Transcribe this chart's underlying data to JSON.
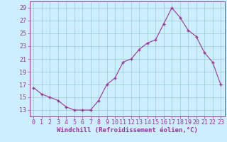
{
  "x": [
    0,
    1,
    2,
    3,
    4,
    5,
    6,
    7,
    8,
    9,
    10,
    11,
    12,
    13,
    14,
    15,
    16,
    17,
    18,
    19,
    20,
    21,
    22,
    23
  ],
  "y": [
    16.5,
    15.5,
    15.0,
    14.5,
    13.5,
    13.0,
    13.0,
    13.0,
    14.5,
    17.0,
    18.0,
    20.5,
    21.0,
    22.5,
    23.5,
    24.0,
    26.5,
    29.0,
    27.5,
    25.5,
    24.5,
    22.0,
    20.5,
    17.0
  ],
  "line_color": "#993399",
  "marker": "+",
  "bg_color": "#cceeff",
  "grid_color": "#99cccc",
  "xlabel": "Windchill (Refroidissement éolien,°C)",
  "ylim": [
    12,
    30
  ],
  "xlim": [
    -0.5,
    23.5
  ],
  "yticks": [
    13,
    15,
    17,
    19,
    21,
    23,
    25,
    27,
    29
  ],
  "xticks": [
    0,
    1,
    2,
    3,
    4,
    5,
    6,
    7,
    8,
    9,
    10,
    11,
    12,
    13,
    14,
    15,
    16,
    17,
    18,
    19,
    20,
    21,
    22,
    23
  ],
  "axis_color": "#993399",
  "label_fontsize": 6.5,
  "tick_fontsize": 6.0
}
